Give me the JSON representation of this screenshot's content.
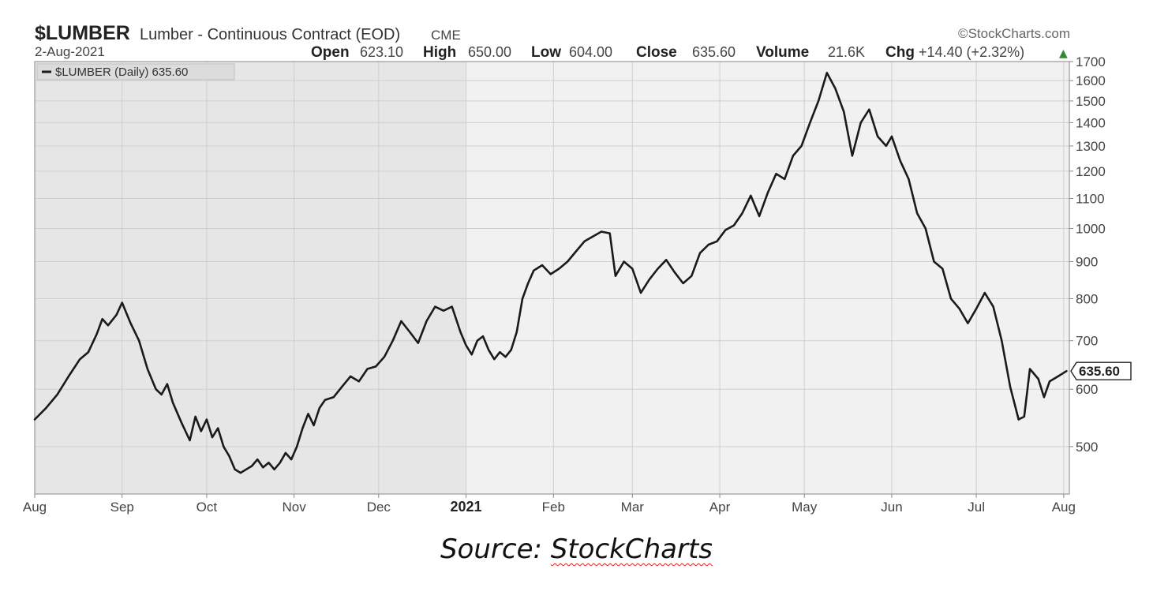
{
  "header": {
    "symbol": "$LUMBER",
    "name": "Lumber - Continuous Contract (EOD)",
    "exchange": "CME",
    "date": "2-Aug-2021",
    "brand": "©StockCharts.com",
    "open_label": "Open",
    "open_value": "623.10",
    "high_label": "High",
    "high_value": "650.00",
    "low_label": "Low",
    "low_value": "604.00",
    "close_label": "Close",
    "close_value": "635.60",
    "volume_label": "Volume",
    "volume_value": "21.6K",
    "chg_label": "Chg",
    "chg_value": "+14.40 (+2.32%)",
    "chg_arrow": "▲"
  },
  "legend": {
    "label": "$LUMBER (Daily) 635.60"
  },
  "last_price_label": "635.60",
  "source": {
    "prefix": "Source: ",
    "brand": "StockCharts"
  },
  "colors": {
    "line": "#1a1a1a",
    "shade_2020": "#e6e6e6",
    "shade_2021": "#f1f1f1",
    "grid": "#cfcfcf",
    "up_arrow": "#2e8b2e"
  },
  "chart_data": {
    "type": "line",
    "title": "$LUMBER Lumber - Continuous Contract (EOD) CME",
    "scale": "log",
    "ylim": [
      430,
      1700
    ],
    "yticks": [
      500,
      600,
      700,
      800,
      900,
      1000,
      1100,
      1200,
      1300,
      1400,
      1500,
      1600,
      1700
    ],
    "xlim": [
      "2020-08-01",
      "2021-08-03"
    ],
    "xtick_labels": [
      {
        "date": "2020-08-01",
        "label": "Aug"
      },
      {
        "date": "2020-09-01",
        "label": "Sep"
      },
      {
        "date": "2020-10-01",
        "label": "Oct"
      },
      {
        "date": "2020-11-01",
        "label": "Nov"
      },
      {
        "date": "2020-12-01",
        "label": "Dec"
      },
      {
        "date": "2021-01-01",
        "label": "2021",
        "bold": true
      },
      {
        "date": "2021-02-01",
        "label": "Feb"
      },
      {
        "date": "2021-03-01",
        "label": "Mar"
      },
      {
        "date": "2021-04-01",
        "label": "Apr"
      },
      {
        "date": "2021-05-01",
        "label": "May"
      },
      {
        "date": "2021-06-01",
        "label": "Jun"
      },
      {
        "date": "2021-07-01",
        "label": "Jul"
      },
      {
        "date": "2021-08-01",
        "label": "Aug"
      }
    ],
    "grid": true,
    "legend_position": "top-left",
    "series": [
      {
        "name": "$LUMBER (Daily)",
        "points": [
          [
            "2020-08-01",
            545
          ],
          [
            "2020-08-05",
            565
          ],
          [
            "2020-08-09",
            590
          ],
          [
            "2020-08-13",
            625
          ],
          [
            "2020-08-17",
            660
          ],
          [
            "2020-08-20",
            675
          ],
          [
            "2020-08-23",
            715
          ],
          [
            "2020-08-25",
            750
          ],
          [
            "2020-08-27",
            735
          ],
          [
            "2020-08-30",
            760
          ],
          [
            "2020-09-01",
            790
          ],
          [
            "2020-09-04",
            740
          ],
          [
            "2020-09-07",
            700
          ],
          [
            "2020-09-10",
            640
          ],
          [
            "2020-09-13",
            600
          ],
          [
            "2020-09-15",
            590
          ],
          [
            "2020-09-17",
            610
          ],
          [
            "2020-09-19",
            575
          ],
          [
            "2020-09-22",
            540
          ],
          [
            "2020-09-25",
            510
          ],
          [
            "2020-09-27",
            550
          ],
          [
            "2020-09-29",
            525
          ],
          [
            "2020-10-01",
            545
          ],
          [
            "2020-10-03",
            515
          ],
          [
            "2020-10-05",
            530
          ],
          [
            "2020-10-07",
            500
          ],
          [
            "2020-10-09",
            485
          ],
          [
            "2020-10-11",
            465
          ],
          [
            "2020-10-13",
            460
          ],
          [
            "2020-10-15",
            465
          ],
          [
            "2020-10-17",
            470
          ],
          [
            "2020-10-19",
            480
          ],
          [
            "2020-10-21",
            468
          ],
          [
            "2020-10-23",
            475
          ],
          [
            "2020-10-25",
            465
          ],
          [
            "2020-10-27",
            475
          ],
          [
            "2020-10-29",
            490
          ],
          [
            "2020-10-31",
            480
          ],
          [
            "2020-11-02",
            500
          ],
          [
            "2020-11-04",
            530
          ],
          [
            "2020-11-06",
            555
          ],
          [
            "2020-11-08",
            535
          ],
          [
            "2020-11-10",
            565
          ],
          [
            "2020-11-12",
            580
          ],
          [
            "2020-11-15",
            585
          ],
          [
            "2020-11-18",
            605
          ],
          [
            "2020-11-21",
            625
          ],
          [
            "2020-11-24",
            615
          ],
          [
            "2020-11-27",
            640
          ],
          [
            "2020-11-30",
            645
          ],
          [
            "2020-12-03",
            665
          ],
          [
            "2020-12-06",
            700
          ],
          [
            "2020-12-09",
            745
          ],
          [
            "2020-12-12",
            720
          ],
          [
            "2020-12-15",
            695
          ],
          [
            "2020-12-18",
            745
          ],
          [
            "2020-12-21",
            780
          ],
          [
            "2020-12-24",
            770
          ],
          [
            "2020-12-27",
            780
          ],
          [
            "2020-12-30",
            720
          ],
          [
            "2021-01-01",
            690
          ],
          [
            "2021-01-03",
            670
          ],
          [
            "2021-01-05",
            700
          ],
          [
            "2021-01-07",
            710
          ],
          [
            "2021-01-09",
            680
          ],
          [
            "2021-01-11",
            660
          ],
          [
            "2021-01-13",
            675
          ],
          [
            "2021-01-15",
            665
          ],
          [
            "2021-01-17",
            680
          ],
          [
            "2021-01-19",
            720
          ],
          [
            "2021-01-21",
            800
          ],
          [
            "2021-01-23",
            840
          ],
          [
            "2021-01-25",
            875
          ],
          [
            "2021-01-28",
            890
          ],
          [
            "2021-01-31",
            865
          ],
          [
            "2021-02-03",
            880
          ],
          [
            "2021-02-06",
            900
          ],
          [
            "2021-02-09",
            930
          ],
          [
            "2021-02-12",
            960
          ],
          [
            "2021-02-15",
            975
          ],
          [
            "2021-02-18",
            990
          ],
          [
            "2021-02-21",
            985
          ],
          [
            "2021-02-23",
            860
          ],
          [
            "2021-02-26",
            900
          ],
          [
            "2021-03-01",
            880
          ],
          [
            "2021-03-04",
            815
          ],
          [
            "2021-03-07",
            850
          ],
          [
            "2021-03-10",
            880
          ],
          [
            "2021-03-13",
            905
          ],
          [
            "2021-03-16",
            870
          ],
          [
            "2021-03-19",
            840
          ],
          [
            "2021-03-22",
            860
          ],
          [
            "2021-03-25",
            925
          ],
          [
            "2021-03-28",
            950
          ],
          [
            "2021-03-31",
            960
          ],
          [
            "2021-04-03",
            995
          ],
          [
            "2021-04-06",
            1010
          ],
          [
            "2021-04-09",
            1050
          ],
          [
            "2021-04-12",
            1110
          ],
          [
            "2021-04-15",
            1040
          ],
          [
            "2021-04-18",
            1120
          ],
          [
            "2021-04-21",
            1190
          ],
          [
            "2021-04-24",
            1170
          ],
          [
            "2021-04-27",
            1260
          ],
          [
            "2021-04-30",
            1300
          ],
          [
            "2021-05-03",
            1400
          ],
          [
            "2021-05-06",
            1500
          ],
          [
            "2021-05-09",
            1640
          ],
          [
            "2021-05-12",
            1560
          ],
          [
            "2021-05-15",
            1450
          ],
          [
            "2021-05-18",
            1260
          ],
          [
            "2021-05-21",
            1400
          ],
          [
            "2021-05-24",
            1460
          ],
          [
            "2021-05-27",
            1340
          ],
          [
            "2021-05-30",
            1300
          ],
          [
            "2021-06-01",
            1340
          ],
          [
            "2021-06-04",
            1240
          ],
          [
            "2021-06-07",
            1170
          ],
          [
            "2021-06-10",
            1050
          ],
          [
            "2021-06-13",
            1000
          ],
          [
            "2021-06-16",
            900
          ],
          [
            "2021-06-19",
            880
          ],
          [
            "2021-06-22",
            800
          ],
          [
            "2021-06-25",
            775
          ],
          [
            "2021-06-28",
            740
          ],
          [
            "2021-07-01",
            775
          ],
          [
            "2021-07-04",
            815
          ],
          [
            "2021-07-07",
            780
          ],
          [
            "2021-07-10",
            700
          ],
          [
            "2021-07-13",
            605
          ],
          [
            "2021-07-16",
            545
          ],
          [
            "2021-07-18",
            550
          ],
          [
            "2021-07-20",
            640
          ],
          [
            "2021-07-23",
            620
          ],
          [
            "2021-07-25",
            585
          ],
          [
            "2021-07-27",
            615
          ],
          [
            "2021-07-30",
            625
          ],
          [
            "2021-08-02",
            635.6
          ]
        ]
      }
    ]
  }
}
